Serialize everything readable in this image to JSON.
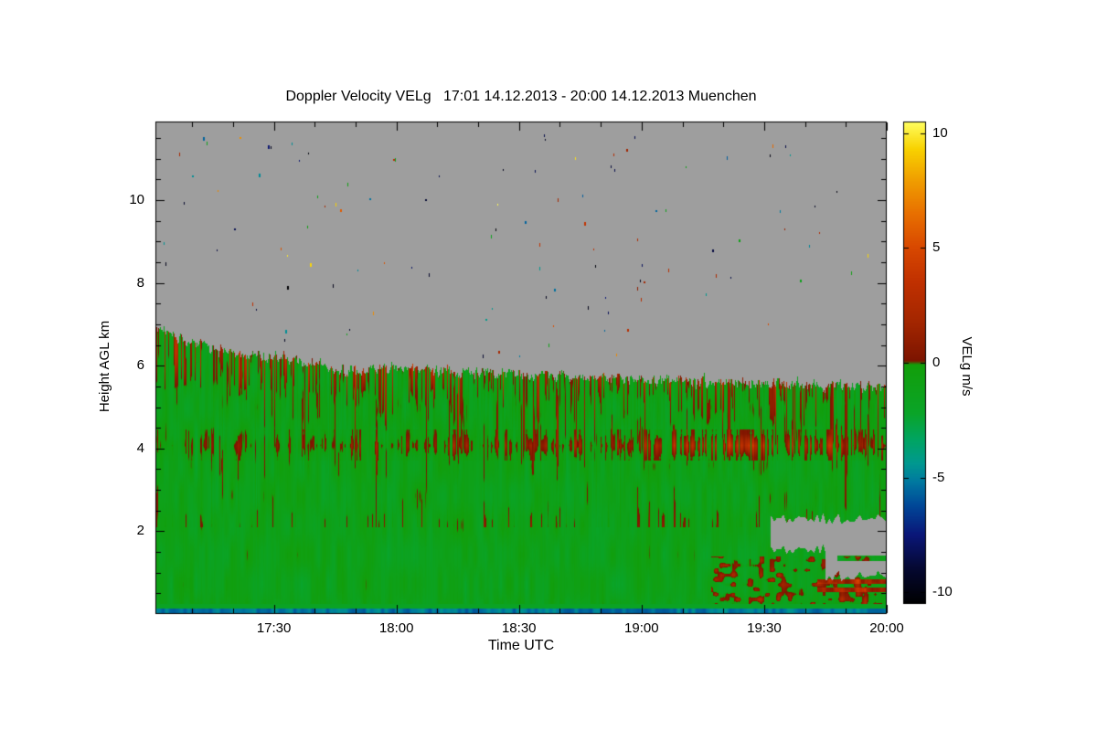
{
  "page": {
    "background_color": "#ffffff"
  },
  "chart_data": {
    "type": "heatmap",
    "title": "Doppler Velocity VELg   17:01 14.12.2013 - 20:00 14.12.2013 Muenchen",
    "instrument_product": "Doppler Velocity VELg",
    "time_span_label": "17:01 14.12.2013 - 20:00 14.12.2013",
    "station": "Muenchen",
    "xlabel": "Time UTC",
    "ylabel": "Height AGL km",
    "x_range": {
      "start_label": "17:01",
      "end_label": "20:00",
      "start_minutes": 1021,
      "end_minutes": 1200
    },
    "x_ticks": [
      {
        "label": "17:30",
        "minutes": 1050
      },
      {
        "label": "18:00",
        "minutes": 1080
      },
      {
        "label": "18:30",
        "minutes": 1110
      },
      {
        "label": "19:00",
        "minutes": 1140
      },
      {
        "label": "19:30",
        "minutes": 1170
      },
      {
        "label": "20:00",
        "minutes": 1200
      }
    ],
    "y_ticks": [
      2,
      4,
      6,
      8,
      10
    ],
    "y_range_km": [
      0,
      11.9
    ],
    "grid": false,
    "no_data_color": "#9e9e9e",
    "frame_color": "#000000",
    "colorbar": {
      "label": "VELg m/s",
      "ticks": [
        10,
        5,
        0,
        -5,
        -10
      ],
      "vmin": -10.5,
      "vmax": 10.5,
      "stops": [
        {
          "v": -10.5,
          "color": "#000000"
        },
        {
          "v": -9.0,
          "color": "#050830"
        },
        {
          "v": -7.5,
          "color": "#0a1678"
        },
        {
          "v": -6.2,
          "color": "#004898"
        },
        {
          "v": -5.2,
          "color": "#0078a0"
        },
        {
          "v": -4.4,
          "color": "#009890"
        },
        {
          "v": -3.4,
          "color": "#00a464"
        },
        {
          "v": -2.2,
          "color": "#0aa428"
        },
        {
          "v": -0.08,
          "color": "#129e0a"
        },
        {
          "v": 0.08,
          "color": "#7c1400"
        },
        {
          "v": 1.8,
          "color": "#a42600"
        },
        {
          "v": 3.5,
          "color": "#c03000"
        },
        {
          "v": 5.0,
          "color": "#d84800"
        },
        {
          "v": 6.5,
          "color": "#e87000"
        },
        {
          "v": 8.0,
          "color": "#f0a000"
        },
        {
          "v": 9.3,
          "color": "#f8d200"
        },
        {
          "v": 10.5,
          "color": "#ffff60"
        }
      ]
    },
    "features": {
      "description": "Green (slightly negative, ~-2 to 0 m/s) echo plume from ground up to cloud top that descends from ~6.9 km at 17:01 to ~5.5 km at 20:00; brown/red downdraft streaks near plume top; red melting-layer band near 4 km strongest 19:00-19:45; teal surface layer below ~0.13 km; gray no-data notch at 0.9-2.3 km after ~19:30; sparse colored noise speckles in gray clear-air region above cloud top.",
      "cloud_top_profile": [
        {
          "t": 1021,
          "h": 6.9
        },
        {
          "t": 1028,
          "h": 6.6
        },
        {
          "t": 1036,
          "h": 6.4
        },
        {
          "t": 1045,
          "h": 6.25
        },
        {
          "t": 1055,
          "h": 6.15
        },
        {
          "t": 1061,
          "h": 6.0
        },
        {
          "t": 1066,
          "h": 5.88
        },
        {
          "t": 1080,
          "h": 5.9
        },
        {
          "t": 1100,
          "h": 5.85
        },
        {
          "t": 1122,
          "h": 5.75
        },
        {
          "t": 1150,
          "h": 5.65
        },
        {
          "t": 1175,
          "h": 5.55
        },
        {
          "t": 1200,
          "h": 5.5
        }
      ],
      "red_band_km": [
        3.7,
        4.45
      ],
      "red_band_center_km": 4.07,
      "surface_teal_layer_top_km": 0.125,
      "gray_gap": {
        "start_minutes": 1171.5,
        "deep_start_minutes": 1185,
        "h_low_km": 0.92,
        "h_mid_km": 1.55,
        "h_high_km": 2.3
      },
      "speckle_count": 110
    }
  }
}
